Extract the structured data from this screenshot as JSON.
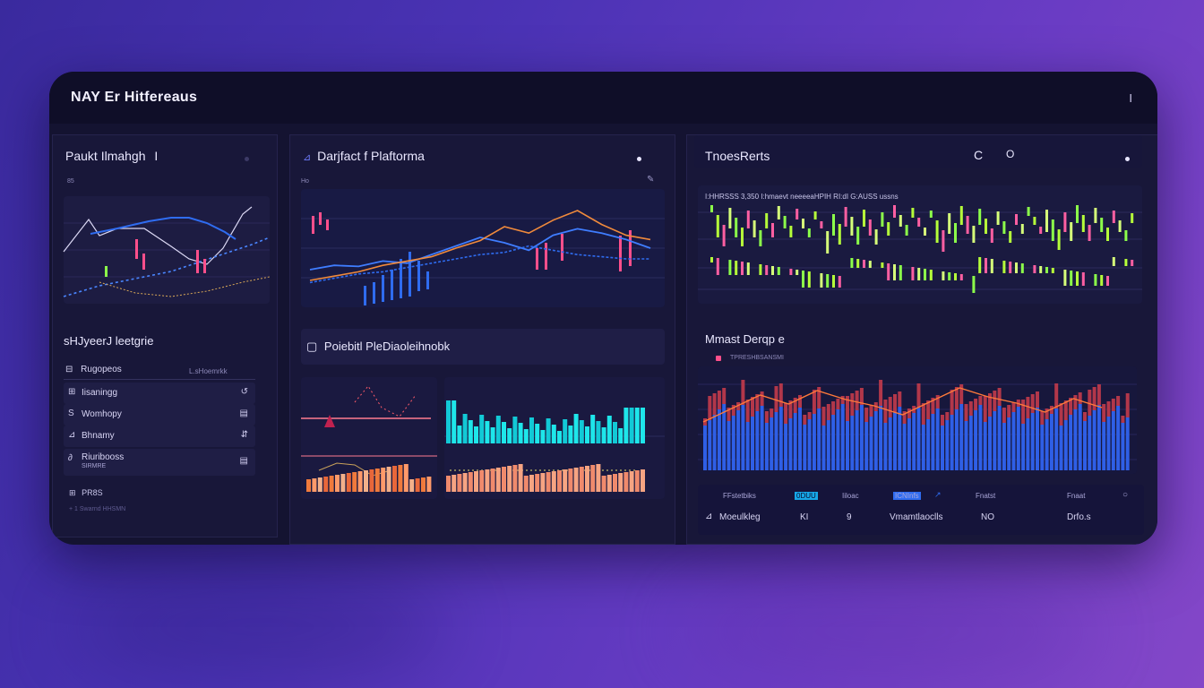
{
  "window": {
    "title": "NAY Er Hitfereaus",
    "close_label": "I"
  },
  "panel_left": {
    "title": "Paukt Ilmahgh",
    "title_suffix": "I",
    "chart_label": "85",
    "section_title": "sHJyeerJ leetgrie",
    "list_header": {
      "label": "Rugopeos",
      "right": "L.sHoemrkk"
    },
    "items": [
      {
        "label": "Iisaningg",
        "icon": "⊞",
        "action": "↺"
      },
      {
        "label": "Womhopy",
        "icon": "S",
        "action": "▤"
      },
      {
        "label": "Bhnamy",
        "icon": "⊿",
        "action": "⇵"
      },
      {
        "label": "Riuribooss",
        "sublabel": "SIRMRE",
        "icon": "∂",
        "action": "▤"
      }
    ],
    "footer_label": "PR8S",
    "footer_tiny": "+ 1 Swarnd HHSMN"
  },
  "panel_mid": {
    "title": "Darjfact f Plaftorma",
    "title_icon": "⊿",
    "chart_label": "Ho",
    "section_title": "Poiebitl PleDiaoleihnobk",
    "section_icon": "▢",
    "chart_data": {
      "type": "line",
      "series": [
        {
          "values": [
            30,
            34,
            33,
            38,
            36,
            44,
            52,
            60,
            55,
            48,
            62,
            68,
            64,
            58,
            50
          ]
        },
        {
          "values": [
            20,
            24,
            28,
            34,
            38,
            42,
            50,
            57,
            70,
            64,
            76,
            85,
            72,
            62,
            58
          ]
        },
        {
          "values": [
            18,
            22,
            26,
            28,
            32,
            36,
            40,
            44,
            46,
            52,
            48,
            44,
            42,
            40,
            40
          ]
        }
      ]
    }
  },
  "panel_right": {
    "title": "TnoesRerts",
    "title_icon_a": "C",
    "title_icon_b": "O",
    "ticker": "I:HHRSSS  3,350 I:hmaevt neeeeaHPIH  RI:dI  G:AUSS ussns",
    "section_title": "Mmast Derqp e",
    "legend_label": "TPRESHBSANSMI",
    "table_header": [
      "FFstetbiks",
      "0DUU",
      "Iiloac",
      "ICNInfs",
      "Fnatst",
      "Fnaat"
    ],
    "table_row": [
      "Moeulkleg",
      "KI",
      "9",
      "Vmamtlaoclls",
      "NO",
      "Drfo.s"
    ]
  },
  "colors": {
    "accent_blue": "#2f6cf0",
    "accent_orange": "#f08a3c",
    "accent_pink": "#ff4f8b",
    "accent_green": "#8cff4a",
    "accent_cyan": "#18e0e8"
  }
}
